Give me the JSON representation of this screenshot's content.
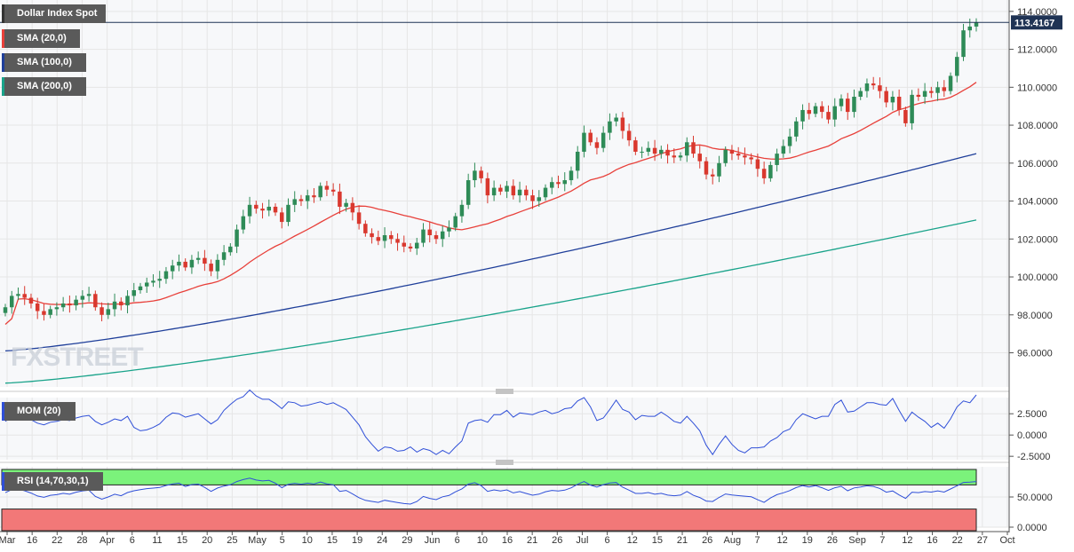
{
  "colors": {
    "bull": "#2e8b57",
    "bear": "#d9382e",
    "sma20": "#e8403a",
    "sma100": "#1f3f9a",
    "sma200": "#19a38a",
    "momentum": "#2f4fd8",
    "rsi": "#2f4fd8",
    "rsi_overbought_zone": "#7bf27b",
    "rsi_oversold_zone": "#f27878",
    "price_badge": "#1f3354",
    "grid": "#e6e6e6"
  },
  "watermark": "FXSTREET",
  "price_panel": {
    "title": "Dollar Index Spot",
    "last_price": "113.4167",
    "sma_labels": [
      "SMA (20,0)",
      "SMA (100,0)",
      "SMA (200,0)"
    ]
  },
  "mom_panel": {
    "title": "MOM (20)"
  },
  "rsi_panel": {
    "title": "RSI (14,70,30,1)"
  },
  "chart_data": [
    {
      "type": "candlestick",
      "title": "Dollar Index Spot",
      "ylim": [
        94.2,
        114.6
      ],
      "y_ticks": [
        "114.0000",
        "112.0000",
        "110.0000",
        "108.0000",
        "106.0000",
        "104.0000",
        "102.0000",
        "100.0000",
        "98.0000",
        "96.0000"
      ],
      "y_tick_values": [
        114,
        112,
        110,
        108,
        106,
        104,
        102,
        100,
        98,
        96
      ],
      "last_value": 113.4167,
      "x_tick_labels": [
        "Mar",
        "16",
        "22",
        "28",
        "Apr",
        "6",
        "11",
        "15",
        "20",
        "25",
        "May",
        "5",
        "10",
        "15",
        "19",
        "24",
        "29",
        "Jun",
        "6",
        "10",
        "16",
        "21",
        "26",
        "Jul",
        "6",
        "12",
        "15",
        "21",
        "26",
        "Aug",
        "7",
        "12",
        "19",
        "26",
        "Sep",
        "7",
        "12",
        "16",
        "22",
        "27",
        "Oct"
      ],
      "closes": [
        98.4,
        99.0,
        99.1,
        98.9,
        98.6,
        98.2,
        98.0,
        98.3,
        98.4,
        98.6,
        98.5,
        98.8,
        99.0,
        99.1,
        98.4,
        98.0,
        98.3,
        98.7,
        98.5,
        99.0,
        99.3,
        99.5,
        99.7,
        99.8,
        99.9,
        100.3,
        100.6,
        100.8,
        100.5,
        100.9,
        101.0,
        100.7,
        100.3,
        100.9,
        101.3,
        101.6,
        102.5,
        103.2,
        103.8,
        103.6,
        103.5,
        103.7,
        103.4,
        102.9,
        103.8,
        104.1,
        104.0,
        104.3,
        104.2,
        104.8,
        104.6,
        104.5,
        103.7,
        103.9,
        103.4,
        102.8,
        102.3,
        102.1,
        101.9,
        102.2,
        102.0,
        101.8,
        101.6,
        101.5,
        101.8,
        102.5,
        102.2,
        102.0,
        102.4,
        102.6,
        103.2,
        103.8,
        105.1,
        105.6,
        105.2,
        104.3,
        104.7,
        104.5,
        104.8,
        104.3,
        104.6,
        104.3,
        104.0,
        104.2,
        104.7,
        105.0,
        104.9,
        105.1,
        105.6,
        106.6,
        107.6,
        107.1,
        106.8,
        107.6,
        108.2,
        108.4,
        107.7,
        107.2,
        106.6,
        106.6,
        106.8,
        106.5,
        106.7,
        106.4,
        106.3,
        106.4,
        107.1,
        106.5,
        106.1,
        105.4,
        105.3,
        106.0,
        106.7,
        106.5,
        106.4,
        106.3,
        106.2,
        105.7,
        105.2,
        105.9,
        106.5,
        106.9,
        107.4,
        108.2,
        108.8,
        108.6,
        109.0,
        108.7,
        108.3,
        109.0,
        109.4,
        108.7,
        109.5,
        109.8,
        110.2,
        110.1,
        109.8,
        109.2,
        109.5,
        108.8,
        108.1,
        109.6,
        109.5,
        109.8,
        109.7,
        110.0,
        109.8,
        110.6,
        111.6,
        113.0,
        113.2,
        113.4167
      ],
      "series": [
        {
          "name": "SMA (20,0)"
        },
        {
          "name": "SMA (100,0)"
        },
        {
          "name": "SMA (200,0)"
        }
      ]
    },
    {
      "type": "line",
      "title": "MOM (20)",
      "ylim": [
        -2.9,
        4.4
      ],
      "y_ticks": [
        "2.5000",
        "0.0000",
        "-2.5000"
      ],
      "y_tick_values": [
        2.5,
        0,
        -2.5
      ],
      "note_values": "computed as 20-period momentum of the closes"
    },
    {
      "type": "line",
      "title": "RSI (14,70,30,1)",
      "ylim": [
        0,
        100
      ],
      "y_ticks": [
        "50.0000",
        "0.0000"
      ],
      "y_tick_values": [
        50,
        0
      ],
      "overbought": 70,
      "oversold": 30
    }
  ]
}
